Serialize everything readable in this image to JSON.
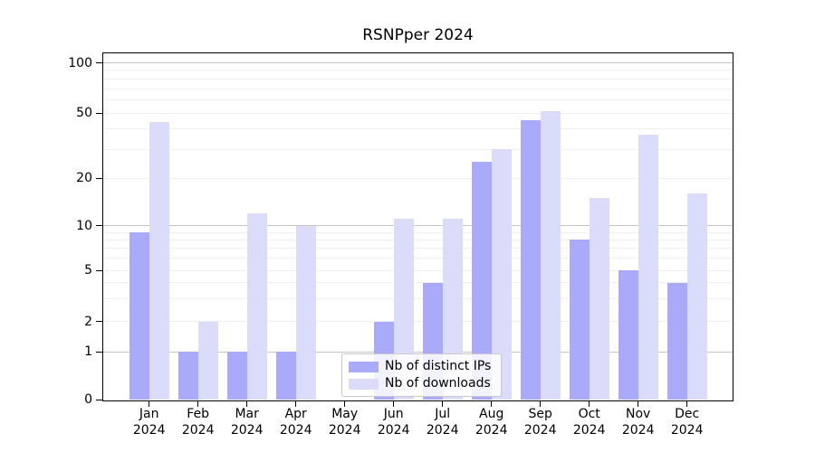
{
  "title": "RSNPper 2024",
  "legend": {
    "items": [
      {
        "label": "Nb of distinct IPs",
        "color": "#aaaafa"
      },
      {
        "label": "Nb of downloads",
        "color": "#dbdbfa"
      }
    ]
  },
  "chart_data": {
    "type": "bar",
    "title": "RSNPper 2024",
    "categories": [
      "Jan",
      "Feb",
      "Mar",
      "Apr",
      "May",
      "Jun",
      "Jul",
      "Aug",
      "Sep",
      "Oct",
      "Nov",
      "Dec"
    ],
    "x_tick_year": "2024",
    "series": [
      {
        "name": "Nb of distinct IPs",
        "color": "#aaaafa",
        "values": [
          9,
          1,
          1,
          1,
          0,
          2,
          4,
          25,
          45,
          8,
          5,
          4
        ]
      },
      {
        "name": "Nb of downloads",
        "color": "#dbdbfa",
        "values": [
          44,
          2,
          12,
          10,
          0,
          11,
          11,
          30,
          51,
          15,
          37,
          16
        ]
      }
    ],
    "yscale": "log-like (0 shown at baseline)",
    "ylim": [
      0,
      120
    ],
    "yticks": [
      0,
      1,
      2,
      5,
      10,
      20,
      50,
      100
    ],
    "minor_grid_values": [
      3,
      4,
      6,
      7,
      8,
      9,
      30,
      40,
      60,
      70,
      80,
      90
    ],
    "grid": true,
    "legend_position": "lower center"
  }
}
